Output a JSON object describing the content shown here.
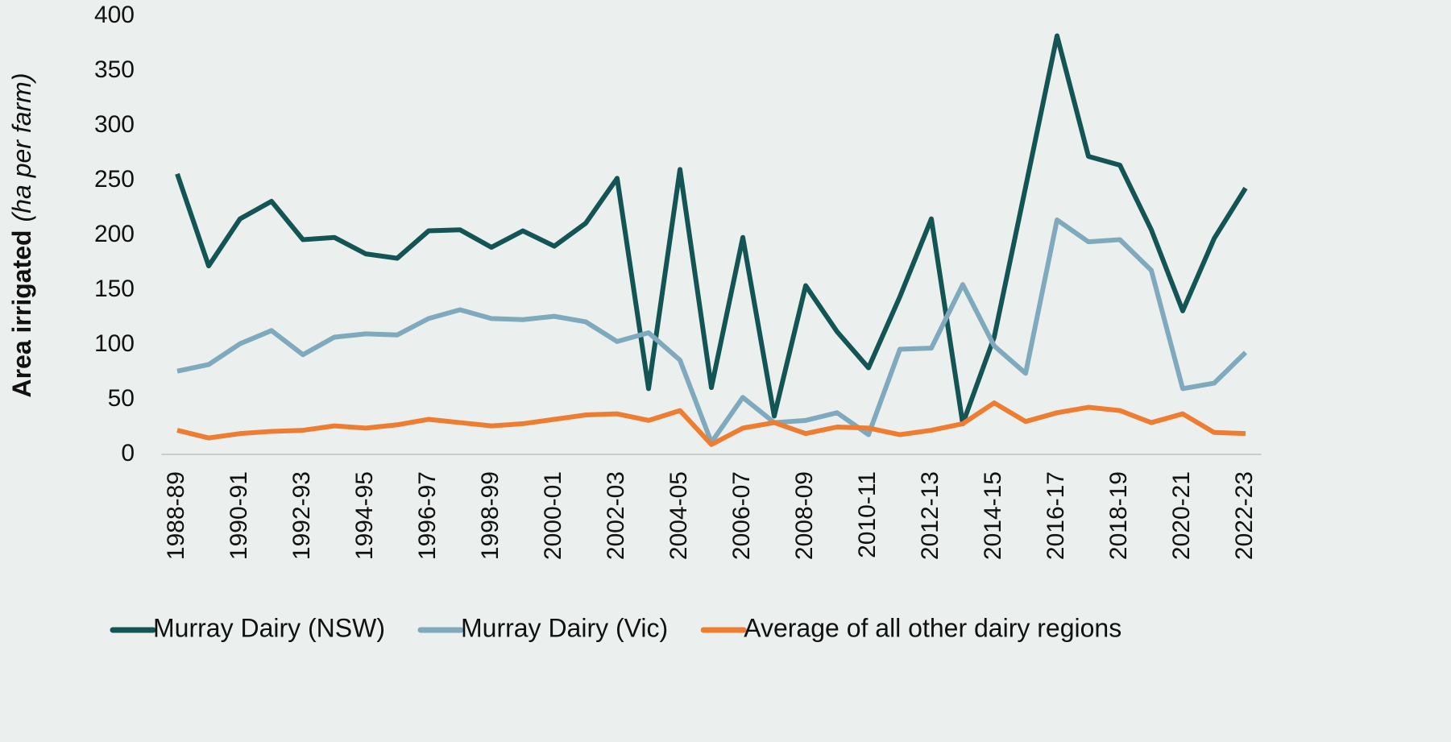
{
  "chart_data": {
    "type": "line",
    "ylabel": "Area irrigated",
    "ylabel_unit": "(ha per farm)",
    "categories": [
      "1988-89",
      null,
      "1990-91",
      null,
      "1992-93",
      null,
      "1994-95",
      null,
      "1996-97",
      null,
      "1998-99",
      null,
      "2000-01",
      null,
      "2002-03",
      null,
      "2004-05",
      null,
      "2006-07",
      null,
      "2008-09",
      null,
      "2010-11",
      null,
      "2012-13",
      null,
      "2014-15",
      null,
      "2016-17",
      null,
      "2018-19",
      null,
      "2020-21",
      null,
      "2022-23"
    ],
    "series": [
      {
        "name": "Murray Dairy (NSW)",
        "color": "#135454",
        "values": [
          256,
          172,
          215,
          231,
          196,
          198,
          183,
          179,
          204,
          205,
          189,
          204,
          190,
          211,
          252,
          60,
          260,
          61,
          198,
          35,
          154,
          112,
          79,
          144,
          215,
          28,
          107,
          244,
          382,
          272,
          264,
          205,
          131,
          197,
          243
        ]
      },
      {
        "name": "Murray Dairy (Vic)",
        "color": "#7fa9bd",
        "values": [
          76,
          82,
          101,
          113,
          91,
          107,
          110,
          109,
          124,
          132,
          124,
          123,
          126,
          121,
          103,
          111,
          86,
          11,
          52,
          29,
          31,
          38,
          18,
          96,
          97,
          155,
          99,
          74,
          214,
          194,
          196,
          168,
          60,
          65,
          93
        ]
      },
      {
        "name": "Average of all other dairy regions",
        "color": "#ee7d31",
        "values": [
          22,
          15,
          19,
          21,
          22,
          26,
          24,
          27,
          32,
          29,
          26,
          28,
          32,
          36,
          37,
          31,
          40,
          9,
          24,
          29,
          19,
          25,
          24,
          18,
          22,
          28,
          47,
          30,
          38,
          43,
          40,
          29,
          37,
          20,
          19
        ]
      }
    ],
    "ylim": [
      0,
      400
    ],
    "yticks": [
      0,
      50,
      100,
      150,
      200,
      250,
      300,
      350,
      400
    ],
    "grid": false,
    "legend": "bottom"
  }
}
